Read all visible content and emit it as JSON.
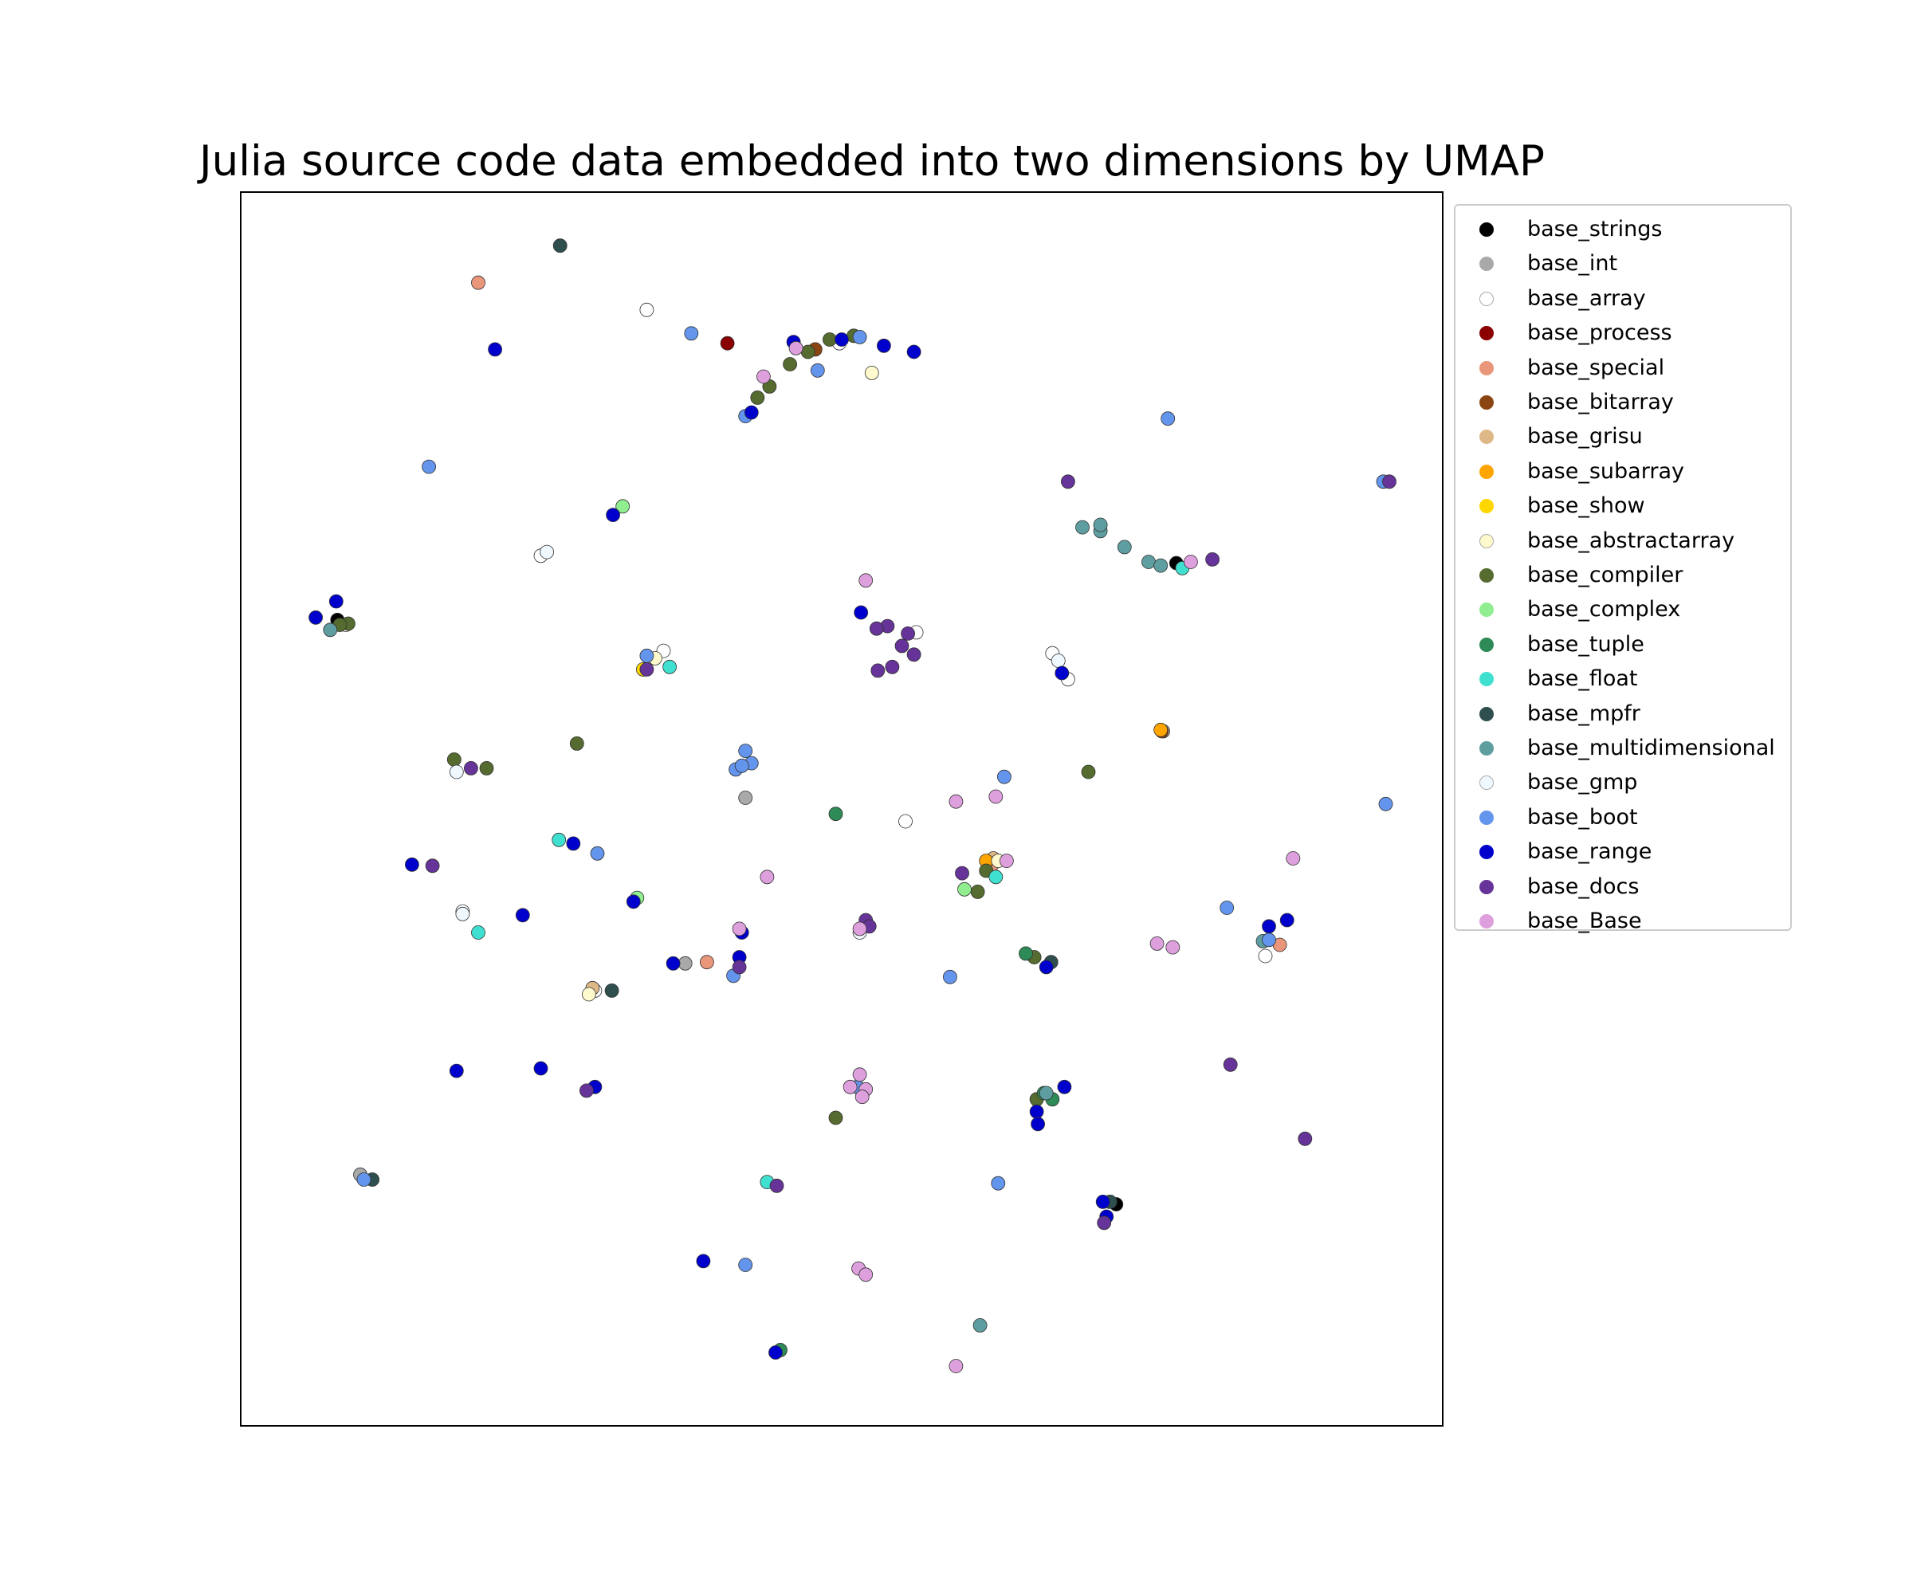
{
  "chart_data": {
    "type": "scatter",
    "title": "Julia source code data embedded into two dimensions by UMAP",
    "xlabel": "",
    "ylabel": "",
    "xlim": [
      0,
      100
    ],
    "ylim": [
      0,
      100
    ],
    "axis_ticks": false,
    "grid": false,
    "legend_position": "outside-right-top",
    "series": [
      {
        "name": "base_strings",
        "color": "#000000",
        "points": [
          [
            77.8,
            69.9
          ],
          [
            8.1,
            65.3
          ],
          [
            72.8,
            18.0
          ]
        ]
      },
      {
        "name": "base_int",
        "color": "#a9a9a9",
        "points": [
          [
            37.0,
            37.5
          ],
          [
            42.0,
            50.9
          ],
          [
            10.0,
            20.4
          ]
        ]
      },
      {
        "name": "base_array",
        "color": "#ffffff",
        "points": [
          [
            33.8,
            90.4
          ],
          [
            49.8,
            87.7
          ],
          [
            25.0,
            70.5
          ],
          [
            8.8,
            64.9
          ],
          [
            35.2,
            62.8
          ],
          [
            56.2,
            64.3
          ],
          [
            67.5,
            62.6
          ],
          [
            68.8,
            60.5
          ],
          [
            76.7,
            56.3
          ],
          [
            55.3,
            49.0
          ],
          [
            18.5,
            41.7
          ],
          [
            29.5,
            35.3
          ],
          [
            85.2,
            38.1
          ]
        ]
      },
      {
        "name": "base_process",
        "color": "#8b0000",
        "points": [
          [
            40.5,
            87.7
          ]
        ]
      },
      {
        "name": "base_special",
        "color": "#e9967a",
        "points": [
          [
            19.8,
            92.6
          ],
          [
            38.8,
            37.6
          ],
          [
            86.4,
            39.0
          ],
          [
            62.5,
            45.5
          ]
        ]
      },
      {
        "name": "base_bitarray",
        "color": "#8b4513",
        "points": [
          [
            76.6,
            56.3
          ],
          [
            47.8,
            87.2
          ]
        ]
      },
      {
        "name": "base_grisu",
        "color": "#deb887",
        "points": [
          [
            62.6,
            46.0
          ],
          [
            29.3,
            35.5
          ]
        ]
      },
      {
        "name": "base_subarray",
        "color": "#ffa500",
        "points": [
          [
            76.5,
            56.4
          ],
          [
            62.0,
            45.8
          ]
        ]
      },
      {
        "name": "base_show",
        "color": "#ffd700",
        "points": [
          [
            33.5,
            61.3
          ]
        ]
      },
      {
        "name": "base_abstractarray",
        "color": "#fffacd",
        "points": [
          [
            29.0,
            35.0
          ],
          [
            34.5,
            62.2
          ],
          [
            52.5,
            85.3
          ],
          [
            63.0,
            45.8
          ]
        ]
      },
      {
        "name": "base_compiler",
        "color": "#556b2f",
        "points": [
          [
            44.0,
            84.2
          ],
          [
            45.7,
            86.0
          ],
          [
            47.2,
            87.0
          ],
          [
            49.0,
            88.0
          ],
          [
            43.0,
            83.3
          ],
          [
            51.0,
            88.3
          ],
          [
            9.0,
            65.0
          ],
          [
            28.0,
            55.3
          ],
          [
            17.8,
            54.0
          ],
          [
            20.5,
            53.3
          ],
          [
            70.5,
            53.0
          ],
          [
            61.3,
            43.3
          ],
          [
            62.0,
            45.0
          ],
          [
            66.0,
            38.0
          ],
          [
            49.5,
            25.0
          ],
          [
            66.2,
            26.5
          ],
          [
            8.3,
            64.9
          ]
        ]
      },
      {
        "name": "base_complex",
        "color": "#90ee90",
        "points": [
          [
            31.8,
            74.5
          ],
          [
            33.0,
            42.8
          ],
          [
            60.2,
            43.5
          ]
        ]
      },
      {
        "name": "base_tuple",
        "color": "#2e8b57",
        "points": [
          [
            49.5,
            49.6
          ],
          [
            66.8,
            27.0
          ],
          [
            65.3,
            38.3
          ],
          [
            44.9,
            6.2
          ],
          [
            67.5,
            26.5
          ]
        ]
      },
      {
        "name": "base_float",
        "color": "#40e0d0",
        "points": [
          [
            26.5,
            47.5
          ],
          [
            35.7,
            61.5
          ],
          [
            43.8,
            19.8
          ],
          [
            62.8,
            44.5
          ],
          [
            78.3,
            69.5
          ],
          [
            19.8,
            40.0
          ]
        ]
      },
      {
        "name": "base_mpfr",
        "color": "#2f4f4f",
        "points": [
          [
            26.6,
            95.6
          ],
          [
            30.9,
            35.3
          ],
          [
            11.0,
            20.0
          ],
          [
            67.4,
            37.6
          ],
          [
            72.3,
            18.2
          ]
        ]
      },
      {
        "name": "base_multidimensional",
        "color": "#5f9ea0",
        "points": [
          [
            70.0,
            72.8
          ],
          [
            71.5,
            72.5
          ],
          [
            73.5,
            71.2
          ],
          [
            75.5,
            70.0
          ],
          [
            76.5,
            69.7
          ],
          [
            71.5,
            73.0
          ],
          [
            7.5,
            64.5
          ],
          [
            61.5,
            8.2
          ],
          [
            67.0,
            27.0
          ],
          [
            85.0,
            39.3
          ]
        ]
      },
      {
        "name": "base_gmp",
        "color": "#f0f8ff",
        "points": [
          [
            25.5,
            70.8
          ],
          [
            68.0,
            62.0
          ],
          [
            18.0,
            53.0
          ],
          [
            18.5,
            41.5
          ],
          [
            51.5,
            40.0
          ]
        ]
      },
      {
        "name": "base_boot",
        "color": "#6495ed",
        "points": [
          [
            77.1,
            81.6
          ],
          [
            15.7,
            77.7
          ],
          [
            42.0,
            81.8
          ],
          [
            48.0,
            85.5
          ],
          [
            37.5,
            88.5
          ],
          [
            33.8,
            62.4
          ],
          [
            42.0,
            54.7
          ],
          [
            42.5,
            53.7
          ],
          [
            41.2,
            53.2
          ],
          [
            41.7,
            53.5
          ],
          [
            63.5,
            52.6
          ],
          [
            95.2,
            50.4
          ],
          [
            29.7,
            46.4
          ],
          [
            41.0,
            36.5
          ],
          [
            59.0,
            36.4
          ],
          [
            82.0,
            42.0
          ],
          [
            85.5,
            39.4
          ],
          [
            63.0,
            19.7
          ],
          [
            42.0,
            13.1
          ],
          [
            51.5,
            88.2
          ],
          [
            95.0,
            76.5
          ],
          [
            10.3,
            20.0
          ],
          [
            51.3,
            27.5
          ]
        ]
      },
      {
        "name": "base_range",
        "color": "#0000cd",
        "points": [
          [
            21.2,
            87.2
          ],
          [
            42.5,
            82.1
          ],
          [
            46.0,
            87.8
          ],
          [
            50.0,
            88.0
          ],
          [
            53.5,
            87.5
          ],
          [
            56.0,
            87.0
          ],
          [
            31.0,
            73.8
          ],
          [
            8.0,
            66.8
          ],
          [
            6.3,
            65.5
          ],
          [
            51.6,
            65.9
          ],
          [
            68.3,
            61.0
          ],
          [
            14.3,
            45.5
          ],
          [
            27.7,
            47.2
          ],
          [
            32.7,
            42.5
          ],
          [
            23.5,
            41.4
          ],
          [
            36.0,
            37.5
          ],
          [
            41.5,
            38.0
          ],
          [
            41.7,
            40.0
          ],
          [
            85.5,
            40.5
          ],
          [
            87.0,
            41.0
          ],
          [
            68.5,
            27.5
          ],
          [
            66.2,
            25.5
          ],
          [
            66.3,
            24.5
          ],
          [
            18.0,
            28.8
          ],
          [
            25.0,
            29.0
          ],
          [
            29.5,
            27.5
          ],
          [
            71.7,
            18.2
          ],
          [
            72.0,
            17.0
          ],
          [
            38.5,
            13.4
          ],
          [
            44.5,
            6.0
          ],
          [
            67.0,
            37.2
          ]
        ]
      },
      {
        "name": "base_docs",
        "color": "#663399",
        "points": [
          [
            53.8,
            64.8
          ],
          [
            55.0,
            63.2
          ],
          [
            54.2,
            61.5
          ],
          [
            56.0,
            62.5
          ],
          [
            53.0,
            61.2
          ],
          [
            55.5,
            64.2
          ],
          [
            16.0,
            45.4
          ],
          [
            19.2,
            53.3
          ],
          [
            52.9,
            64.6
          ],
          [
            33.8,
            61.3
          ],
          [
            52.0,
            41.0
          ],
          [
            60.0,
            44.8
          ],
          [
            41.5,
            37.2
          ],
          [
            52.3,
            40.5
          ],
          [
            88.5,
            23.3
          ],
          [
            82.3,
            29.3
          ],
          [
            95.5,
            76.5
          ],
          [
            44.6,
            19.5
          ],
          [
            28.8,
            27.2
          ],
          [
            68.8,
            76.5
          ],
          [
            71.8,
            16.5
          ],
          [
            80.8,
            70.2
          ]
        ]
      },
      {
        "name": "base_Base",
        "color": "#dda0dd",
        "points": [
          [
            43.5,
            85.0
          ],
          [
            46.2,
            87.3
          ],
          [
            79.0,
            70.0
          ],
          [
            87.5,
            46.0
          ],
          [
            59.5,
            50.6
          ],
          [
            63.7,
            45.8
          ],
          [
            52.0,
            68.5
          ],
          [
            41.5,
            40.3
          ],
          [
            51.5,
            40.3
          ],
          [
            77.5,
            38.8
          ],
          [
            76.2,
            39.1
          ],
          [
            50.7,
            27.5
          ],
          [
            51.5,
            28.5
          ],
          [
            52.0,
            27.3
          ],
          [
            51.7,
            26.7
          ],
          [
            51.4,
            12.8
          ],
          [
            52.0,
            12.3
          ],
          [
            59.5,
            4.9
          ],
          [
            43.8,
            44.5
          ],
          [
            62.8,
            51.0
          ]
        ]
      }
    ]
  }
}
